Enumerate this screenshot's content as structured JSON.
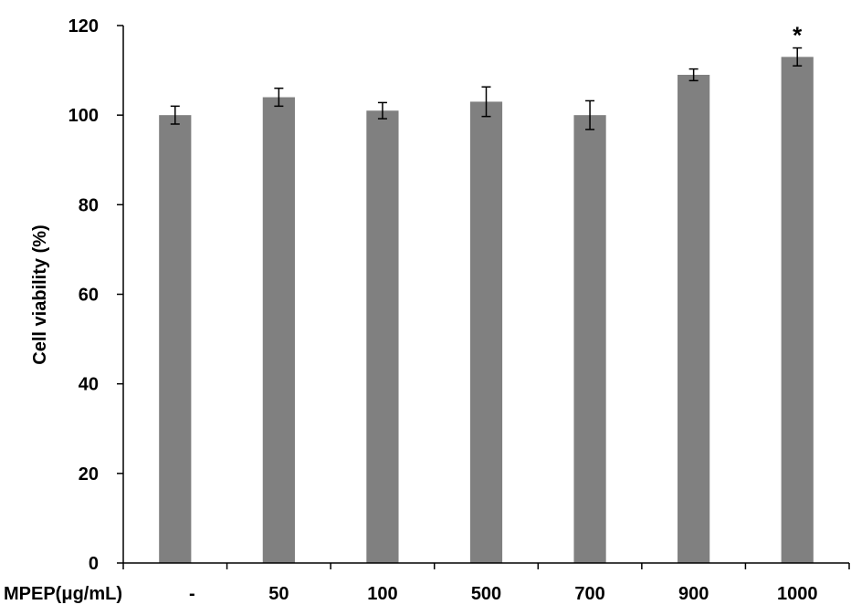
{
  "chart_data": {
    "type": "bar",
    "title": "",
    "xlabel": "MPEP(μg/mL)",
    "ylabel": "Cell viability (%)",
    "categories": [
      "-",
      "50",
      "100",
      "500",
      "700",
      "900",
      "1000"
    ],
    "values": [
      100,
      104,
      101,
      103,
      100,
      109,
      113
    ],
    "errors": [
      2,
      2,
      1.8,
      3.3,
      3.2,
      1.3,
      2
    ],
    "annotations": [
      "",
      "",
      "",
      "",
      "",
      "",
      "*"
    ],
    "ylim": [
      0,
      120
    ],
    "yticks": [
      0,
      20,
      40,
      60,
      80,
      100,
      120
    ],
    "grid": false,
    "legend": "none",
    "bar_color": "#808080"
  }
}
